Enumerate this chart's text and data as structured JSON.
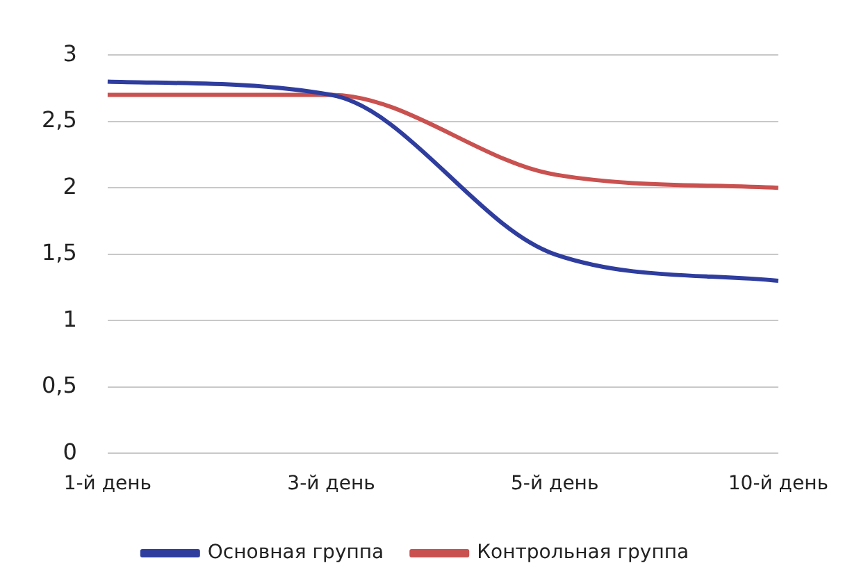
{
  "chart_data": {
    "type": "line",
    "categories": [
      "1-й день",
      "3-й день",
      "5-й день",
      "10-й день"
    ],
    "series": [
      {
        "name": "Основная группа",
        "color": "#2e3d9e",
        "values": [
          2.8,
          2.7,
          1.5,
          1.3
        ]
      },
      {
        "name": "Контрольная группа",
        "color": "#c9514f",
        "values": [
          2.7,
          2.7,
          2.1,
          2.0
        ]
      }
    ],
    "ylim": [
      0,
      3
    ],
    "yticks": [
      {
        "value": 0,
        "label": "0"
      },
      {
        "value": 0.5,
        "label": "0,5"
      },
      {
        "value": 1,
        "label": "1"
      },
      {
        "value": 1.5,
        "label": "1,5"
      },
      {
        "value": 2,
        "label": "2"
      },
      {
        "value": 2.5,
        "label": "2,5"
      },
      {
        "value": 3,
        "label": "3"
      }
    ],
    "grid": "y",
    "legend": "bottom",
    "marker": "none",
    "line_style": "solid"
  }
}
